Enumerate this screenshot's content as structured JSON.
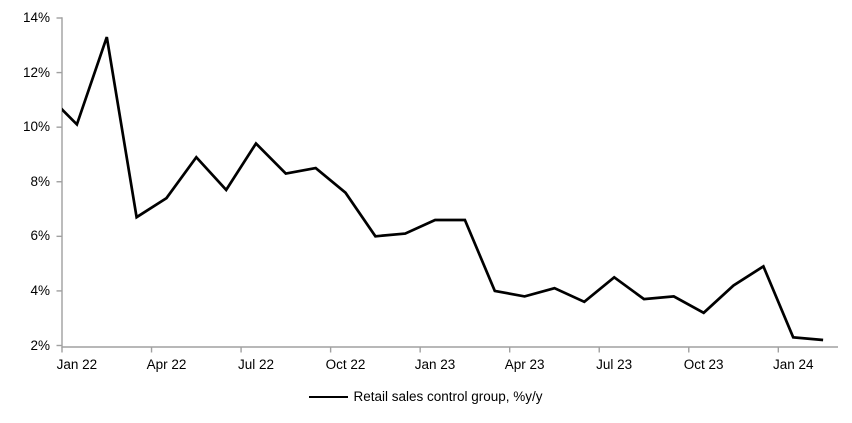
{
  "chart_data": {
    "type": "line",
    "title": "",
    "legend": "Retail sales control group, %y/y",
    "legend_position": "bottom-center",
    "grid": false,
    "x": [
      "Dec 21",
      "Jan 22",
      "Feb 22",
      "Mar 22",
      "Apr 22",
      "May 22",
      "Jun 22",
      "Jul 22",
      "Aug 22",
      "Sep 22",
      "Oct 22",
      "Nov 22",
      "Dec 22",
      "Jan 23",
      "Feb 23",
      "Mar 23",
      "Apr 23",
      "May 23",
      "Jun 23",
      "Jul 23",
      "Aug 23",
      "Sep 23",
      "Oct 23",
      "Nov 23",
      "Dec 23",
      "Jan 24",
      "Feb 24"
    ],
    "series": [
      {
        "name": "Retail sales control group, %y/y",
        "color": "#000000",
        "values": [
          11.2,
          10.1,
          13.3,
          6.7,
          7.4,
          8.9,
          7.7,
          9.4,
          8.3,
          8.5,
          7.6,
          6.0,
          6.1,
          6.6,
          6.6,
          4.0,
          3.8,
          4.1,
          3.6,
          4.5,
          3.7,
          3.8,
          3.2,
          4.2,
          4.9,
          2.3,
          2.2
        ],
        "first_point_clipped_by_axis": true
      }
    ],
    "xlabel": "",
    "ylabel": "",
    "ylim": [
      2,
      14
    ],
    "y_tick_step": 2,
    "y_tick_labels": [
      "2%",
      "4%",
      "6%",
      "8%",
      "10%",
      "12%",
      "14%"
    ],
    "x_tick_labels": [
      "Jan 22",
      "Apr 22",
      "Jul 22",
      "Oct 22",
      "Jan 23",
      "Apr 23",
      "Jul 23",
      "Oct 23",
      "Jan 24"
    ],
    "x_tick_label_indices": [
      1,
      4,
      7,
      10,
      13,
      16,
      19,
      22,
      25
    ],
    "axis_color": "#a0a0a0",
    "text_color": "#000000"
  }
}
